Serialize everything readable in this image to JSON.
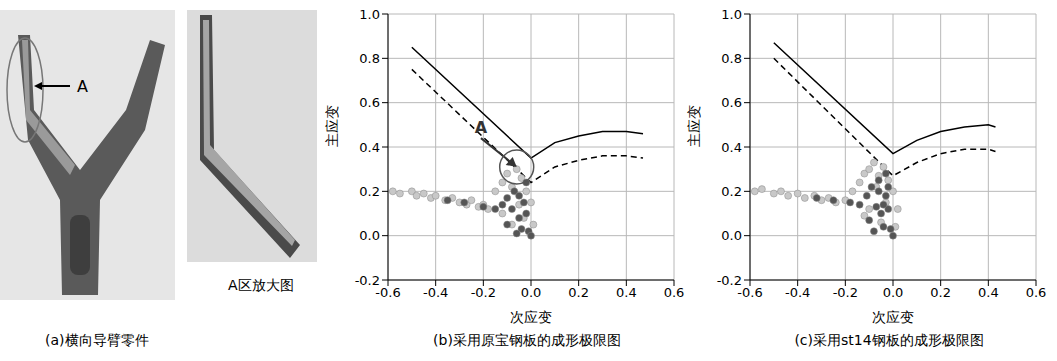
{
  "image_panel": {
    "label": "A",
    "inset_caption": "A区放大图",
    "caption": "(a)横向导臂零件"
  },
  "chart_data": [
    {
      "type": "scatter",
      "title": "(b)采用原宝钢板的成形极限图",
      "xlabel": "次应变",
      "ylabel": "主应变",
      "xlim": [
        -0.6,
        0.6
      ],
      "ylim": [
        -0.2,
        1.0
      ],
      "xticks": [
        -0.6,
        -0.4,
        -0.2,
        {
          "value": 0,
          "label": "0.0"
        },
        0.2,
        0.4,
        0.6
      ],
      "yticks": [
        -0.2,
        {
          "value": 0,
          "label": "0.0"
        },
        0.2,
        0.4,
        0.6,
        0.8,
        {
          "value": 1,
          "label": "1.0"
        }
      ],
      "grid": true,
      "series": [
        {
          "type": "scatter",
          "marker": "circle",
          "color": "#c8c8c8",
          "x": [
            -0.58,
            -0.55,
            -0.5,
            -0.48,
            -0.45,
            -0.42,
            -0.4,
            -0.36,
            -0.33,
            -0.3,
            -0.27,
            -0.25,
            -0.22,
            -0.2,
            -0.18,
            -0.15,
            -0.12,
            -0.1,
            -0.08,
            -0.06,
            -0.04,
            -0.02,
            0.0,
            -0.12,
            -0.08,
            -0.03,
            0.01,
            -0.05
          ],
          "values": [
            0.2,
            0.19,
            0.2,
            0.18,
            0.19,
            0.17,
            0.18,
            0.16,
            0.17,
            0.15,
            0.14,
            0.16,
            0.13,
            0.14,
            0.12,
            0.2,
            0.24,
            0.28,
            0.22,
            0.3,
            0.26,
            0.2,
            0.15,
            0.1,
            0.05,
            0.08,
            0.05,
            0.14
          ]
        },
        {
          "type": "scatter",
          "marker": "circle",
          "color": "#555555",
          "x": [
            -0.35,
            -0.28,
            -0.2,
            -0.15,
            -0.12,
            -0.1,
            -0.08,
            -0.07,
            -0.05,
            -0.04,
            -0.03,
            -0.02,
            -0.01,
            0.0,
            -0.06,
            -0.1,
            -0.02,
            -0.05
          ],
          "values": [
            0.16,
            0.15,
            0.13,
            0.12,
            0.14,
            0.17,
            0.12,
            0.2,
            0.08,
            0.03,
            0.15,
            0.1,
            0.02,
            0.0,
            0.01,
            0.05,
            0.24,
            0.18
          ]
        },
        {
          "type": "line",
          "line_style": "solid",
          "color": "#000000",
          "x": [
            -0.5,
            0.0,
            0.1,
            0.2,
            0.3,
            0.4,
            0.47
          ],
          "values": [
            0.85,
            0.35,
            0.42,
            0.45,
            0.47,
            0.47,
            0.46
          ]
        },
        {
          "type": "line",
          "line_style": "dashed",
          "color": "#000000",
          "x": [
            -0.5,
            0.0,
            0.1,
            0.2,
            0.3,
            0.4,
            0.47
          ],
          "values": [
            0.75,
            0.24,
            0.31,
            0.34,
            0.36,
            0.36,
            0.35
          ]
        }
      ],
      "annotations": [
        {
          "text": "A",
          "x": -0.21,
          "y": 0.44,
          "arrow_to": [
            -0.06,
            0.31
          ]
        }
      ]
    },
    {
      "type": "scatter",
      "title": "(c)采用st14钢板的成形极限图",
      "xlabel": "次应变",
      "ylabel": "主应变",
      "xlim": [
        -0.6,
        0.6
      ],
      "ylim": [
        -0.2,
        1.0
      ],
      "xticks": [
        -0.6,
        -0.4,
        -0.2,
        {
          "value": 0,
          "label": "0.0"
        },
        0.2,
        0.4,
        0.6
      ],
      "yticks": [
        -0.2,
        {
          "value": 0,
          "label": "0.0"
        },
        0.2,
        0.4,
        0.6,
        0.8,
        {
          "value": 1,
          "label": "1.0"
        }
      ],
      "grid": true,
      "series": [
        {
          "type": "scatter",
          "marker": "circle",
          "color": "#c8c8c8",
          "x": [
            -0.58,
            -0.55,
            -0.5,
            -0.47,
            -0.44,
            -0.4,
            -0.37,
            -0.33,
            -0.3,
            -0.27,
            -0.24,
            -0.2,
            -0.17,
            -0.14,
            -0.12,
            -0.1,
            -0.08,
            -0.06,
            -0.04,
            -0.02,
            0.0,
            0.02,
            -0.1,
            -0.05,
            0.01,
            -0.07,
            -0.03,
            -0.12
          ],
          "values": [
            0.2,
            0.21,
            0.19,
            0.2,
            0.18,
            0.19,
            0.17,
            0.18,
            0.16,
            0.17,
            0.15,
            0.16,
            0.2,
            0.24,
            0.28,
            0.3,
            0.33,
            0.27,
            0.31,
            0.25,
            0.2,
            0.12,
            0.12,
            0.06,
            0.04,
            0.22,
            0.15,
            0.09
          ]
        },
        {
          "type": "scatter",
          "marker": "circle",
          "color": "#555555",
          "x": [
            -0.32,
            -0.25,
            -0.18,
            -0.14,
            -0.11,
            -0.09,
            -0.07,
            -0.06,
            -0.05,
            -0.04,
            -0.03,
            -0.02,
            -0.01,
            0.0,
            -0.08,
            -0.1,
            -0.03,
            -0.06,
            -0.04,
            -0.02
          ],
          "values": [
            0.17,
            0.16,
            0.15,
            0.14,
            0.18,
            0.22,
            0.13,
            0.25,
            0.1,
            0.04,
            0.18,
            0.12,
            0.03,
            0.0,
            0.02,
            0.07,
            0.28,
            0.2,
            0.14,
            0.22
          ]
        },
        {
          "type": "line",
          "line_style": "solid",
          "color": "#000000",
          "x": [
            -0.5,
            0.0,
            0.1,
            0.2,
            0.3,
            0.4,
            0.43
          ],
          "values": [
            0.87,
            0.37,
            0.43,
            0.47,
            0.49,
            0.5,
            0.49
          ]
        },
        {
          "type": "line",
          "line_style": "dashed",
          "color": "#000000",
          "x": [
            -0.5,
            0.0,
            0.1,
            0.2,
            0.3,
            0.4,
            0.43
          ],
          "values": [
            0.8,
            0.27,
            0.33,
            0.37,
            0.39,
            0.39,
            0.38
          ]
        }
      ],
      "annotations": []
    }
  ]
}
